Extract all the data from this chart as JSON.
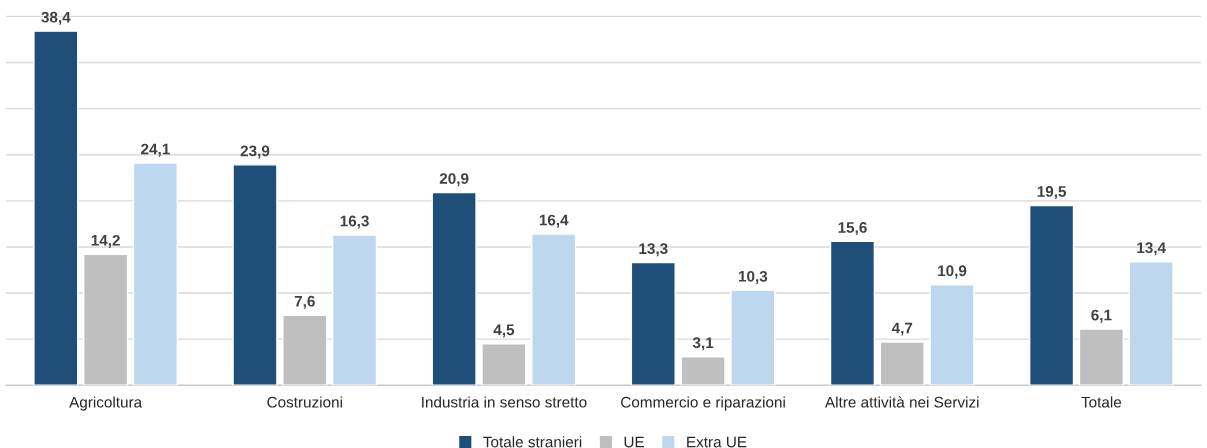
{
  "chart_data": {
    "type": "bar",
    "categories": [
      "Agricoltura",
      "Costruzioni",
      "Industria in senso stretto",
      "Commercio e riparazioni",
      "Altre attività nei Servizi",
      "Totale"
    ],
    "series": [
      {
        "name": "Totale stranieri",
        "color": "#1f4e79",
        "values": [
          38.4,
          23.9,
          20.9,
          13.3,
          15.6,
          19.5
        ],
        "value_labels": [
          "38,4",
          "23,9",
          "20,9",
          "13,3",
          "15,6",
          "19,5"
        ]
      },
      {
        "name": "UE",
        "color": "#bfbfbf",
        "values": [
          14.2,
          7.6,
          4.5,
          3.1,
          4.7,
          6.1
        ],
        "value_labels": [
          "14,2",
          "7,6",
          "4,5",
          "3,1",
          "4,7",
          "6,1"
        ]
      },
      {
        "name": "Extra UE",
        "color": "#bdd7ee",
        "values": [
          24.1,
          16.3,
          16.4,
          10.3,
          10.9,
          13.4
        ],
        "value_labels": [
          "24,1",
          "16,3",
          "16,4",
          "10,3",
          "10,9",
          "13,4"
        ]
      }
    ],
    "tick_labels": "x",
    "grid": "y",
    "legend": "bottom"
  }
}
